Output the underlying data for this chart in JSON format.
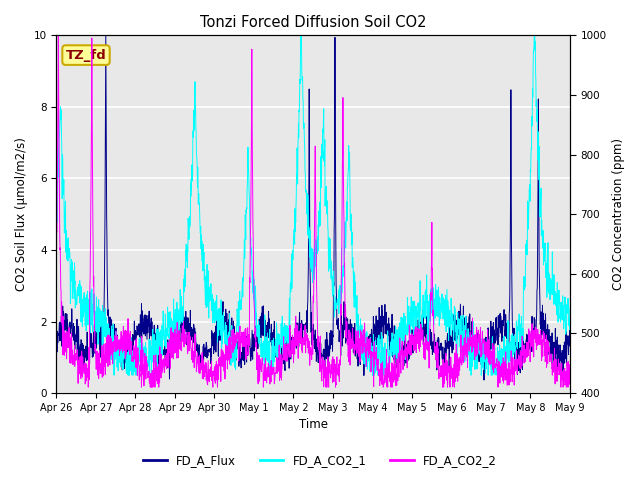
{
  "title": "Tonzi Forced Diffusion Soil CO2",
  "xlabel": "Time",
  "ylabel_left": "CO2 Soil Flux (μmol/m2/s)",
  "ylabel_right": "CO2 Concentration (ppm)",
  "ylim_left": [
    0.0,
    10.0
  ],
  "ylim_right": [
    400,
    1000
  ],
  "xtick_labels": [
    "Apr 26",
    "Apr 27",
    "Apr 28",
    "Apr 29",
    "Apr 30",
    "May 1",
    "May 2",
    "May 3",
    "May 4",
    "May 5",
    "May 6",
    "May 7",
    "May 8",
    "May 9"
  ],
  "color_flux": "#00008B",
  "color_co2_1": "#00FFFF",
  "color_co2_2": "#FF00FF",
  "legend_labels": [
    "FD_A_Flux",
    "FD_A_CO2_1",
    "FD_A_CO2_2"
  ],
  "annotation_text": "TZ_fd",
  "annotation_color": "#8B0000",
  "annotation_bg": "#FFFF99",
  "annotation_edge": "#CCAA00",
  "bg_color": "#E8E8E8",
  "grid_color": "#FFFFFF",
  "fig_bg": "#FFFFFF",
  "n_days": 13,
  "pts_per_day": 144
}
